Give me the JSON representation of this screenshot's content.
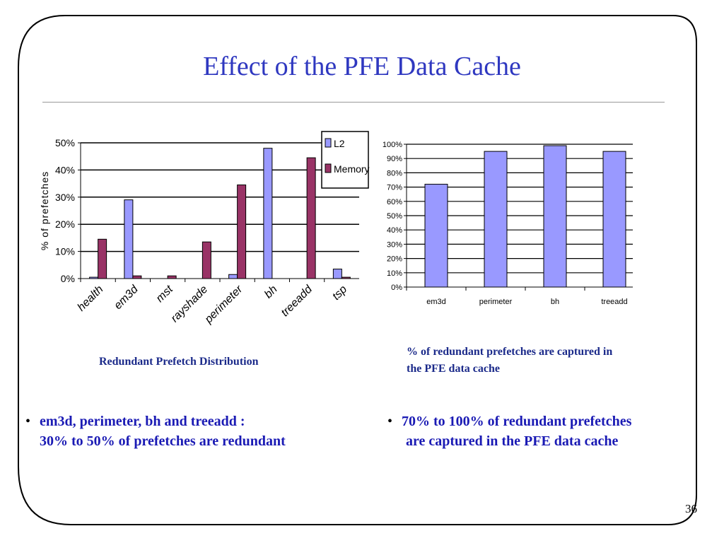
{
  "slide": {
    "title": "Effect of the PFE Data Cache",
    "page_number": "36",
    "left_caption": "Redundant Prefetch Distribution",
    "right_caption_line1": "% of redundant prefetches are captured in",
    "right_caption_line2": "the PFE data cache",
    "left_bullet_line1": "em3d, perimeter, bh and treeadd :",
    "left_bullet_line2": "30% to 50% of  prefetches are redundant",
    "right_bullet_line1": "70% to 100% of redundant prefetches",
    "right_bullet_line2": "are captured in the PFE data cache",
    "bullet_glyph": "•"
  },
  "colors": {
    "title": "#2f38c0",
    "caption": "#1b2a8a",
    "bullet": "#1a1ab4",
    "series_l2": "#9999ff",
    "series_memory": "#993366"
  },
  "chart_data": [
    {
      "type": "bar",
      "categories": [
        "health",
        "em3d",
        "mst",
        "rayshade",
        "perimeter",
        "bh",
        "treeadd",
        "tsp"
      ],
      "series": [
        {
          "name": "L2",
          "values": [
            0.5,
            29,
            0,
            0,
            1.5,
            48,
            0,
            3.5
          ]
        },
        {
          "name": "Memory",
          "values": [
            14.5,
            1,
            1,
            13.5,
            34.5,
            0,
            44.5,
            0.5
          ]
        }
      ],
      "ylabel": "% of prefetches",
      "ylim": [
        0,
        50
      ],
      "yticks": [
        "0%",
        "10%",
        "20%",
        "30%",
        "40%",
        "50%"
      ],
      "legend": "top-right",
      "grid": true
    },
    {
      "type": "bar",
      "categories": [
        "em3d",
        "perimeter",
        "bh",
        "treeadd"
      ],
      "values": [
        72,
        95,
        99,
        95
      ],
      "ylim": [
        0,
        100
      ],
      "yticks": [
        "0%",
        "10%",
        "20%",
        "30%",
        "40%",
        "50%",
        "60%",
        "70%",
        "80%",
        "90%",
        "100%"
      ],
      "grid": true
    }
  ]
}
